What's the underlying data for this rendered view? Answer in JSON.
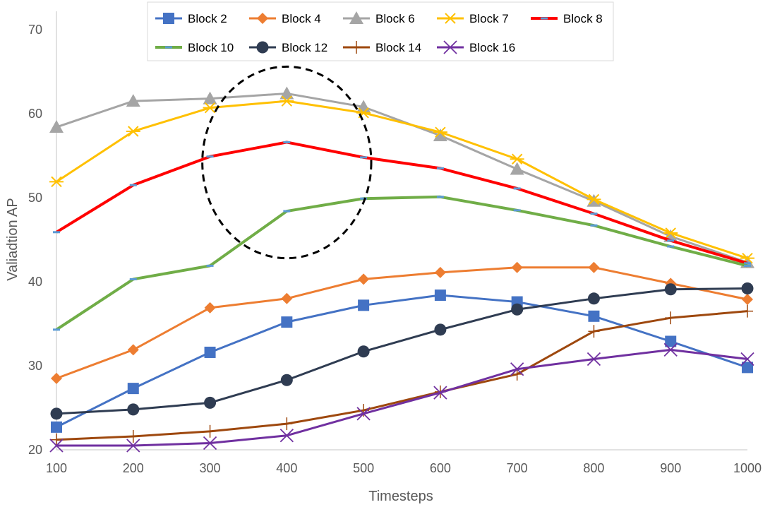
{
  "chart_data": {
    "type": "line",
    "title": "",
    "xlabel": "Timesteps",
    "ylabel": "Valiadtion AP",
    "x": [
      100,
      200,
      300,
      400,
      500,
      600,
      700,
      800,
      900,
      1000
    ],
    "xlim": [
      100,
      1000
    ],
    "ylim": [
      20,
      70
    ],
    "yticks": [
      20,
      30,
      40,
      50,
      60,
      70
    ],
    "grid": false,
    "legend_position": "top",
    "series": [
      {
        "name": "Block 2",
        "color": "#4472C4",
        "marker": "square",
        "values": [
          22.7,
          27.3,
          31.6,
          35.2,
          37.2,
          38.4,
          37.6,
          35.9,
          32.9,
          29.8
        ]
      },
      {
        "name": "Block 4",
        "color": "#ED7D31",
        "marker": "diamond",
        "values": [
          28.5,
          31.9,
          36.9,
          38.0,
          40.3,
          41.1,
          41.7,
          41.7,
          39.8,
          37.9
        ]
      },
      {
        "name": "Block 6",
        "color": "#A5A5A5",
        "marker": "triangle",
        "values": [
          58.4,
          61.5,
          61.8,
          62.4,
          60.8,
          57.4,
          53.4,
          49.6,
          45.4,
          42.3
        ]
      },
      {
        "name": "Block 7",
        "color": "#FFC000",
        "marker": "asterisk",
        "values": [
          51.9,
          57.9,
          60.7,
          61.5,
          60.1,
          57.8,
          54.6,
          49.8,
          45.8,
          42.8
        ]
      },
      {
        "name": "Block 8",
        "color": "#FF0000",
        "marker": "dash",
        "values": [
          45.9,
          51.5,
          54.9,
          56.6,
          54.8,
          53.5,
          51.1,
          48.1,
          44.9,
          42.2
        ]
      },
      {
        "name": "Block 10",
        "color": "#70AD47",
        "marker": "dash",
        "values": [
          34.3,
          40.3,
          41.9,
          48.4,
          49.9,
          50.1,
          48.5,
          46.7,
          44.2,
          41.9
        ]
      },
      {
        "name": "Block 12",
        "color": "#2F3C52",
        "marker": "circle",
        "values": [
          24.3,
          24.8,
          25.6,
          28.3,
          31.7,
          34.3,
          36.7,
          38.0,
          39.1,
          39.2
        ]
      },
      {
        "name": "Block 14",
        "color": "#9E480E",
        "marker": "plus",
        "values": [
          21.2,
          21.6,
          22.2,
          23.1,
          24.7,
          26.9,
          29.0,
          34.1,
          35.7,
          36.5
        ]
      },
      {
        "name": "Block 16",
        "color": "#7030A0",
        "marker": "x",
        "values": [
          20.5,
          20.5,
          20.8,
          21.7,
          24.3,
          26.8,
          29.6,
          30.8,
          31.9,
          30.8
        ]
      }
    ],
    "annotation": {
      "type": "dashed-ellipse",
      "center_x": 400,
      "center_y": 54.2,
      "radius_x": 110,
      "radius_y": 11.4,
      "color": "#000000"
    }
  }
}
